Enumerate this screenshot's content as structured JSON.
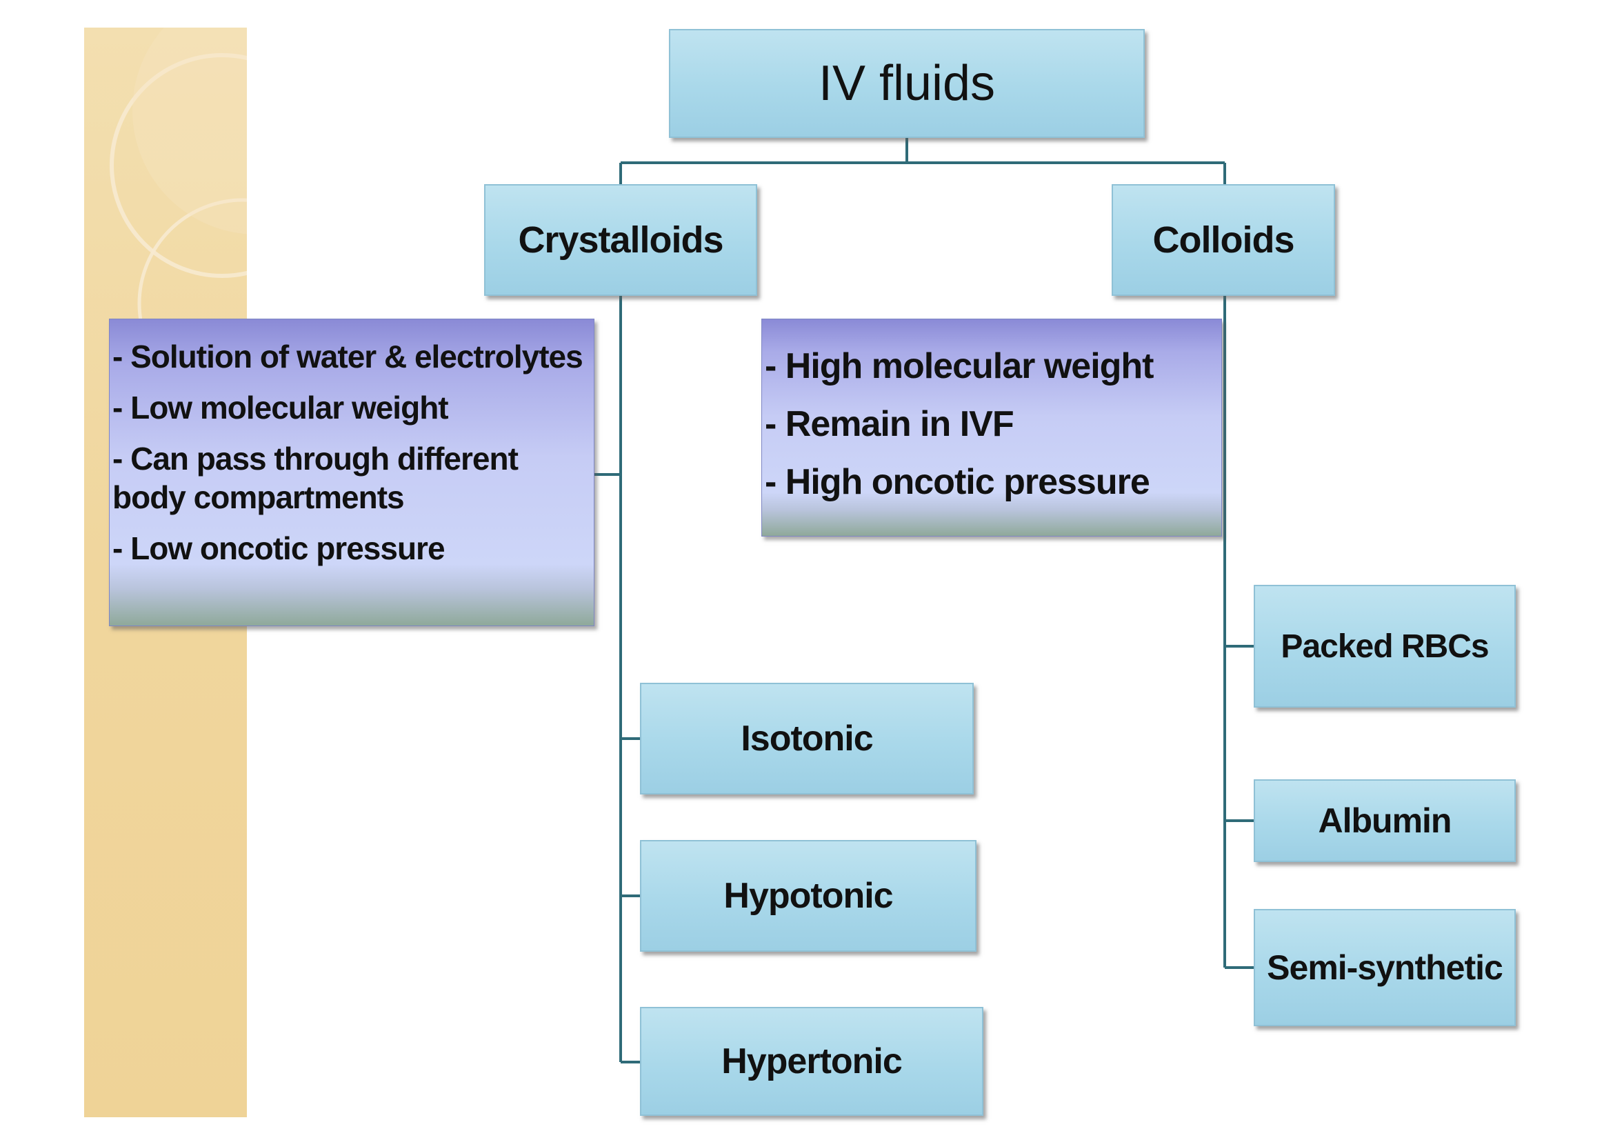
{
  "diagram": {
    "root": {
      "label": "IV fluids"
    },
    "crystalloids": {
      "label": "Crystalloids",
      "properties": [
        "- Solution of water & electrolytes",
        "- Low molecular weight",
        "- Can pass through different body compartments",
        "- Low oncotic pressure"
      ],
      "types": [
        "Isotonic",
        "Hypotonic",
        "Hypertonic"
      ]
    },
    "colloids": {
      "label": "Colloids",
      "properties": [
        "- High molecular weight",
        "- Remain in IVF",
        "- High oncotic pressure"
      ],
      "types": [
        "Packed RBCs",
        "Albumin",
        "Semi-synthetic"
      ]
    }
  },
  "colors": {
    "node_fill": "#a9d8ea",
    "node_border": "#8fc1d6",
    "note_fill": "#c6ccf5",
    "connector": "#2f6b78",
    "deco_strip": "#f0d69d"
  }
}
